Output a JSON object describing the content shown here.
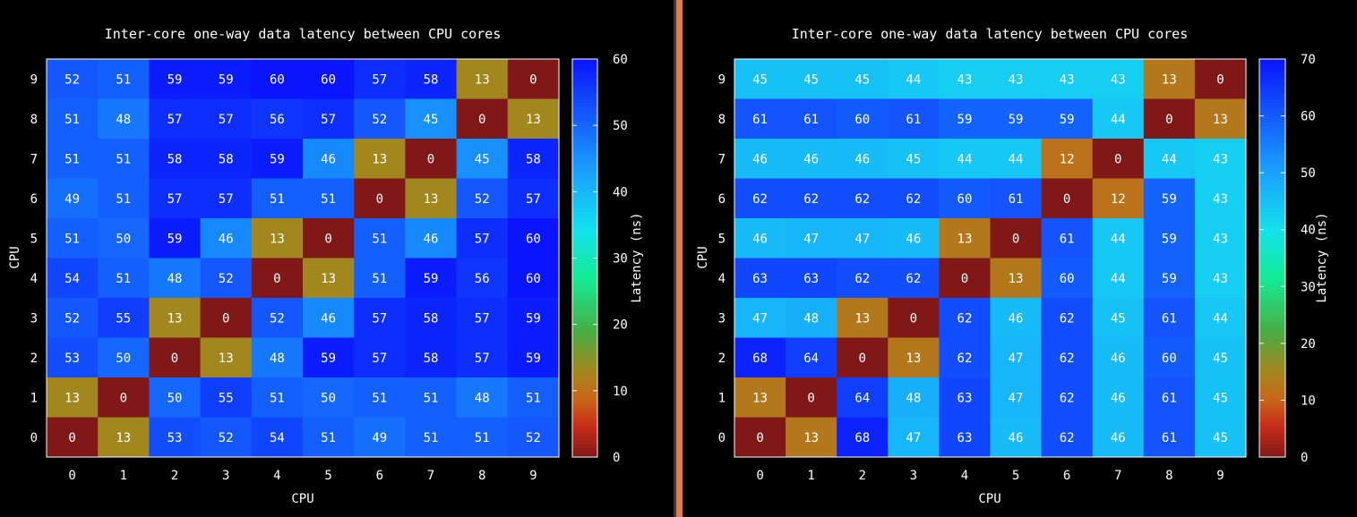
{
  "chart_data": [
    {
      "type": "heatmap",
      "title": "Inter-core one-way data latency between CPU cores",
      "xlabel": "CPU",
      "ylabel": "CPU",
      "colorbar_label": "Latency (ns)",
      "x_ticks": [
        "0",
        "1",
        "2",
        "3",
        "4",
        "5",
        "6",
        "7",
        "8",
        "9"
      ],
      "y_ticks": [
        "0",
        "1",
        "2",
        "3",
        "4",
        "5",
        "6",
        "7",
        "8",
        "9"
      ],
      "colorbar_range": [
        0,
        60
      ],
      "colorbar_ticks": [
        0,
        10,
        20,
        30,
        40,
        50,
        60
      ],
      "rows_top_to_bottom": [
        "9",
        "8",
        "7",
        "6",
        "5",
        "4",
        "3",
        "2",
        "1",
        "0"
      ],
      "values": [
        [
          52,
          51,
          59,
          59,
          60,
          60,
          57,
          58,
          13,
          0
        ],
        [
          51,
          48,
          57,
          57,
          56,
          57,
          52,
          45,
          0,
          13
        ],
        [
          51,
          51,
          58,
          58,
          59,
          46,
          13,
          0,
          45,
          58
        ],
        [
          49,
          51,
          57,
          57,
          51,
          51,
          0,
          13,
          52,
          57
        ],
        [
          51,
          50,
          59,
          46,
          13,
          0,
          51,
          46,
          57,
          60
        ],
        [
          54,
          51,
          48,
          52,
          0,
          13,
          51,
          59,
          56,
          60
        ],
        [
          52,
          55,
          13,
          0,
          52,
          46,
          57,
          58,
          57,
          59
        ],
        [
          53,
          50,
          0,
          13,
          48,
          59,
          57,
          58,
          57,
          59
        ],
        [
          13,
          0,
          50,
          55,
          51,
          50,
          51,
          51,
          48,
          51
        ],
        [
          0,
          13,
          53,
          52,
          54,
          51,
          49,
          51,
          51,
          52
        ]
      ],
      "grid": false,
      "legend": "colorbar-right"
    },
    {
      "type": "heatmap",
      "title": "Inter-core one-way data latency between CPU cores",
      "xlabel": "CPU",
      "ylabel": "CPU",
      "colorbar_label": "Latency (ns)",
      "x_ticks": [
        "0",
        "1",
        "2",
        "3",
        "4",
        "5",
        "6",
        "7",
        "8",
        "9"
      ],
      "y_ticks": [
        "0",
        "1",
        "2",
        "3",
        "4",
        "5",
        "6",
        "7",
        "8",
        "9"
      ],
      "colorbar_range": [
        0,
        70
      ],
      "colorbar_ticks": [
        0,
        10,
        20,
        30,
        40,
        50,
        60,
        70
      ],
      "rows_top_to_bottom": [
        "9",
        "8",
        "7",
        "6",
        "5",
        "4",
        "3",
        "2",
        "1",
        "0"
      ],
      "values": [
        [
          45,
          45,
          45,
          44,
          43,
          43,
          43,
          43,
          13,
          0
        ],
        [
          61,
          61,
          60,
          61,
          59,
          59,
          59,
          44,
          0,
          13
        ],
        [
          46,
          46,
          46,
          45,
          44,
          44,
          12,
          0,
          44,
          43
        ],
        [
          62,
          62,
          62,
          62,
          60,
          61,
          0,
          12,
          59,
          43
        ],
        [
          46,
          47,
          47,
          46,
          13,
          0,
          61,
          44,
          59,
          43
        ],
        [
          63,
          63,
          62,
          62,
          0,
          13,
          60,
          44,
          59,
          43
        ],
        [
          47,
          48,
          13,
          0,
          62,
          46,
          62,
          45,
          61,
          44
        ],
        [
          68,
          64,
          0,
          13,
          62,
          47,
          62,
          46,
          60,
          45
        ],
        [
          13,
          0,
          64,
          48,
          63,
          47,
          62,
          46,
          61,
          45
        ],
        [
          0,
          13,
          68,
          47,
          63,
          46,
          62,
          46,
          61,
          45
        ]
      ],
      "grid": false,
      "legend": "colorbar-right"
    }
  ]
}
